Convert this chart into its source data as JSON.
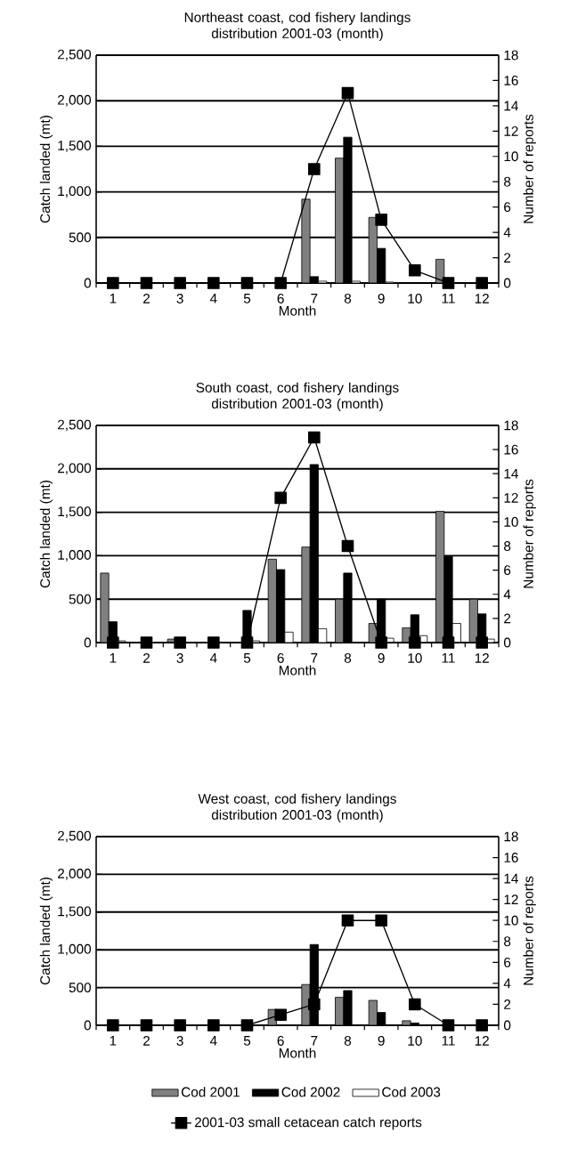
{
  "chart_data": [
    {
      "type": "bar",
      "title": "Northeast coast, cod fishery landings distribution 2001-03 (month)",
      "xlabel": "Month",
      "ylabel": "Catch landed (mt)",
      "y2label": "Number of reports",
      "categories": [
        "1",
        "2",
        "3",
        "4",
        "5",
        "6",
        "7",
        "8",
        "9",
        "10",
        "11",
        "12"
      ],
      "series": [
        {
          "color": "#808080",
          "values": [
            null,
            null,
            null,
            null,
            null,
            null,
            920,
            1370,
            720,
            null,
            260,
            null
          ]
        },
        {
          "color": "#000000",
          "values": [
            null,
            null,
            null,
            null,
            null,
            null,
            70,
            1600,
            380,
            null,
            null,
            null
          ]
        },
        {
          "color": "#ffffff",
          "values": [
            null,
            null,
            null,
            null,
            null,
            null,
            20,
            20,
            10,
            null,
            null,
            null
          ]
        },
        {
          "type": "line",
          "axis": "y2",
          "color": "#000000",
          "marker": "square",
          "line_style": "solid",
          "values": [
            0,
            0,
            0,
            0,
            0,
            0,
            9,
            15,
            5,
            1,
            0,
            0
          ]
        }
      ],
      "ylim": [
        0,
        2500
      ],
      "yticks": [
        {
          "value": 0,
          "label": "0"
        },
        {
          "value": 500,
          "label": "500"
        },
        {
          "value": 1000,
          "label": "1,000"
        },
        {
          "value": 1500,
          "label": "1,500"
        },
        {
          "value": 2000,
          "label": "2,000"
        },
        {
          "value": 2500,
          "label": "2,500"
        }
      ],
      "y2lim": [
        0,
        18
      ],
      "y2ticks": [
        0,
        2,
        4,
        6,
        8,
        10,
        12,
        14,
        16,
        18
      ],
      "grid": "y"
    },
    {
      "type": "bar",
      "title": "South coast, cod fishery landings distribution 2001-03 (month)",
      "xlabel": "Month",
      "ylabel": "Catch landed (mt)",
      "y2label": "Number of reports",
      "categories": [
        "1",
        "2",
        "3",
        "4",
        "5",
        "6",
        "7",
        "8",
        "9",
        "10",
        "11",
        "12"
      ],
      "series": [
        {
          "color": "#808080",
          "values": [
            800,
            null,
            40,
            null,
            null,
            960,
            1100,
            500,
            220,
            170,
            1510,
            500
          ]
        },
        {
          "color": "#000000",
          "values": [
            240,
            null,
            null,
            null,
            370,
            840,
            2050,
            800,
            500,
            320,
            990,
            330
          ]
        },
        {
          "color": "#ffffff",
          "values": [
            20,
            null,
            null,
            null,
            20,
            120,
            160,
            null,
            50,
            80,
            220,
            40
          ]
        },
        {
          "type": "line",
          "axis": "y2",
          "color": "#000000",
          "marker": "square",
          "line_style": "solid",
          "values": [
            0,
            0,
            0,
            0,
            0,
            12,
            17,
            8,
            0,
            0,
            0,
            0
          ]
        }
      ],
      "ylim": [
        0,
        2500
      ],
      "yticks": [
        {
          "value": 0,
          "label": "0"
        },
        {
          "value": 500,
          "label": "500"
        },
        {
          "value": 1000,
          "label": "1,000"
        },
        {
          "value": 1500,
          "label": "1,500"
        },
        {
          "value": 2000,
          "label": "2,000"
        },
        {
          "value": 2500,
          "label": "2,500"
        }
      ],
      "y2lim": [
        0,
        18
      ],
      "y2ticks": [
        0,
        2,
        4,
        6,
        8,
        10,
        12,
        14,
        16,
        18
      ],
      "grid": "y"
    },
    {
      "type": "bar",
      "title": "West coast, cod fishery landings distribution 2001-03 (month)",
      "xlabel": "Month",
      "ylabel": "Catch landed (mt)",
      "y2label": "Number of reports",
      "categories": [
        "1",
        "2",
        "3",
        "4",
        "5",
        "6",
        "7",
        "8",
        "9",
        "10",
        "11",
        "12"
      ],
      "series": [
        {
          "name": "Cod 2001",
          "color": "#808080",
          "values": [
            null,
            null,
            null,
            null,
            null,
            210,
            540,
            370,
            330,
            60,
            null,
            null
          ]
        },
        {
          "name": "Cod 2002",
          "color": "#000000",
          "values": [
            null,
            null,
            null,
            null,
            null,
            null,
            1070,
            460,
            170,
            30,
            null,
            null
          ]
        },
        {
          "name": "Cod 2003",
          "color": "#ffffff",
          "values": [
            null,
            null,
            null,
            null,
            null,
            null,
            null,
            null,
            null,
            null,
            null,
            null
          ]
        },
        {
          "name": "2001-03 small cetacean catch reports",
          "type": "line",
          "axis": "y2",
          "color": "#000000",
          "marker": "square",
          "line_style": "solid",
          "values": [
            0,
            0,
            0,
            0,
            0,
            1,
            2,
            10,
            10,
            2,
            0,
            0
          ]
        }
      ],
      "ylim": [
        0,
        2500
      ],
      "yticks": [
        {
          "value": 0,
          "label": "0"
        },
        {
          "value": 500,
          "label": "500"
        },
        {
          "value": 1000,
          "label": "1,000"
        },
        {
          "value": 1500,
          "label": "1,500"
        },
        {
          "value": 2000,
          "label": "2,000"
        },
        {
          "value": 2500,
          "label": "2,500"
        }
      ],
      "y2lim": [
        0,
        18
      ],
      "y2ticks": [
        0,
        2,
        4,
        6,
        8,
        10,
        12,
        14,
        16,
        18
      ],
      "grid": "y",
      "legend": "bottom"
    }
  ]
}
